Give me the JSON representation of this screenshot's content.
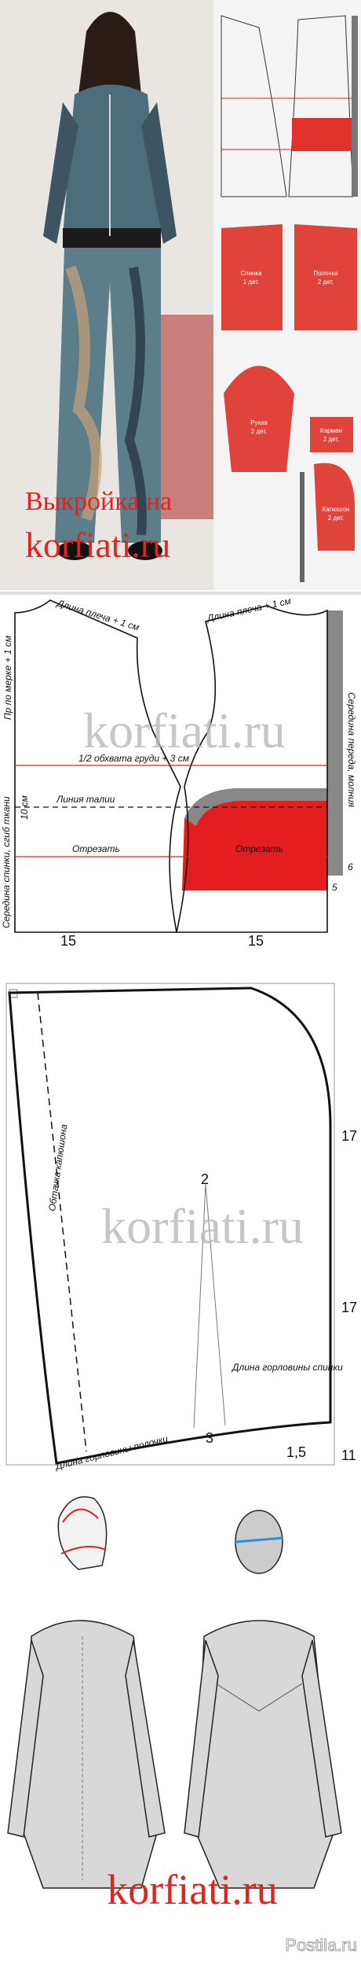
{
  "intro": {
    "caption_line1": "Выкройка на",
    "caption_line2": "korfiati.ru",
    "preview_labels": [
      {
        "name": "Спинка",
        "count": "1 дет."
      },
      {
        "name": "Полочка",
        "count": "2 дет."
      },
      {
        "name": "Рукав",
        "count": "2 дет."
      },
      {
        "name": "Карман",
        "count": "2 дет."
      },
      {
        "name": "Капюшон",
        "count": "2 дет."
      }
    ]
  },
  "bodice": {
    "shoulder_back": "Длина плеча + 1 см",
    "shoulder_front": "Длина плеча + 1 см",
    "armhole": "Пр по мерке + 1 см",
    "back_center": "Середина спинки, сгиб ткани",
    "front_center": "Середина переда, молния",
    "watermark": "korfiati.ru",
    "chest": "1/2 обхвата груди + 3 см",
    "waist": "Линия талии",
    "below_waist": "10 см",
    "cut_back": "Отрезать",
    "cut_front": "Отрезать",
    "mark_6": "6",
    "mark_5": "5",
    "width_back": "15",
    "width_front": "15"
  },
  "hood": {
    "height_top": "17",
    "height_middle": "17",
    "height_bottom": "11",
    "watermark": "korfiati.ru",
    "point_2": "2",
    "facing": "Обтачка капюшона",
    "back_neck": "Длина горловины спинки",
    "point_3": "3",
    "offset": "1,5",
    "front_neck": "Длина горловины полочки"
  },
  "illustration": {
    "watermark": "korfiati.ru",
    "source": "Postila.ru"
  }
}
